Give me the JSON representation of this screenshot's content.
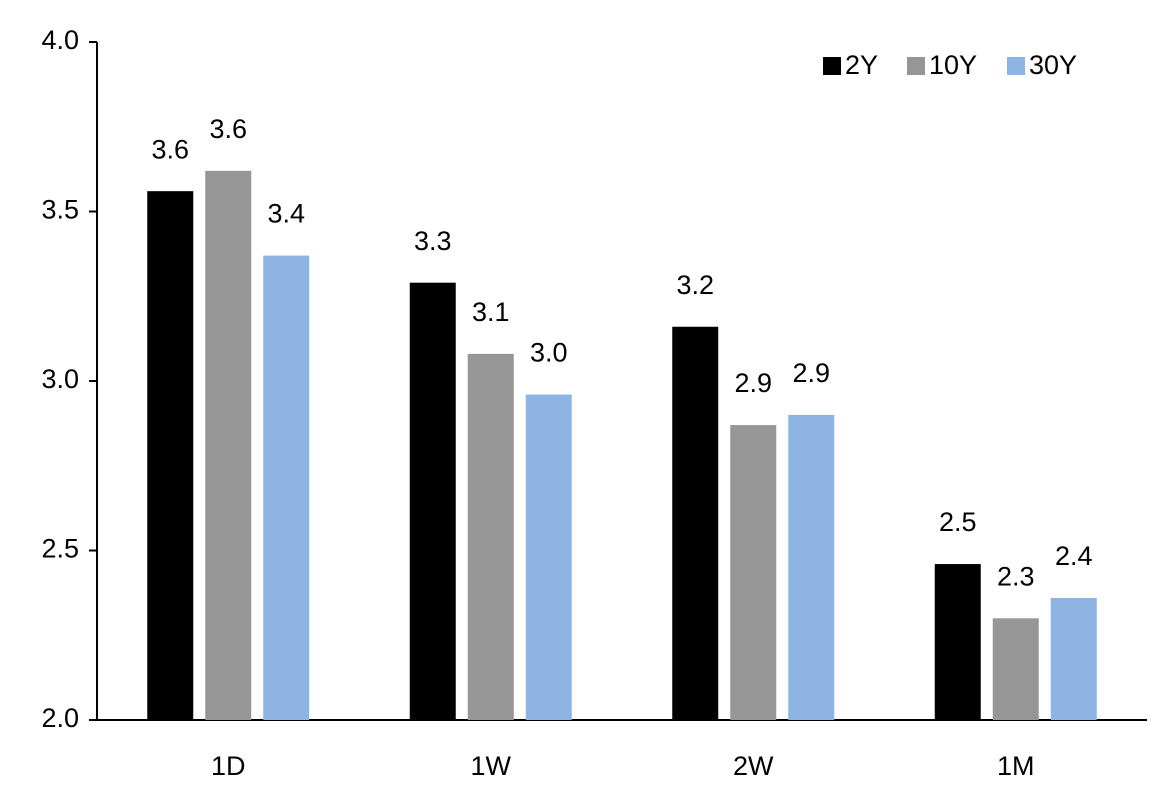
{
  "chart_data": {
    "type": "bar",
    "categories": [
      "1D",
      "1W",
      "2W",
      "1M"
    ],
    "series": [
      {
        "name": "2Y",
        "color": "#000000",
        "values": [
          3.56,
          3.29,
          3.16,
          2.46
        ],
        "value_labels": [
          "3.6",
          "3.3",
          "3.2",
          "2.5"
        ]
      },
      {
        "name": "10Y",
        "color": "#969696",
        "values": [
          3.62,
          3.08,
          2.87,
          2.3
        ],
        "value_labels": [
          "3.6",
          "3.1",
          "2.9",
          "2.3"
        ]
      },
      {
        "name": "30Y",
        "color": "#8eb4e3",
        "values": [
          3.37,
          2.96,
          2.9,
          2.36
        ],
        "value_labels": [
          "3.4",
          "3.0",
          "2.9",
          "2.4"
        ]
      }
    ],
    "ylim": [
      2.0,
      4.0
    ],
    "yticks": [
      {
        "value": 2.0,
        "label": "2.0"
      },
      {
        "value": 2.5,
        "label": "2.5"
      },
      {
        "value": 3.0,
        "label": "3.0"
      },
      {
        "value": 3.5,
        "label": "3.5"
      },
      {
        "value": 4.0,
        "label": "4.0"
      }
    ],
    "grid": false,
    "legend": "top-right"
  }
}
